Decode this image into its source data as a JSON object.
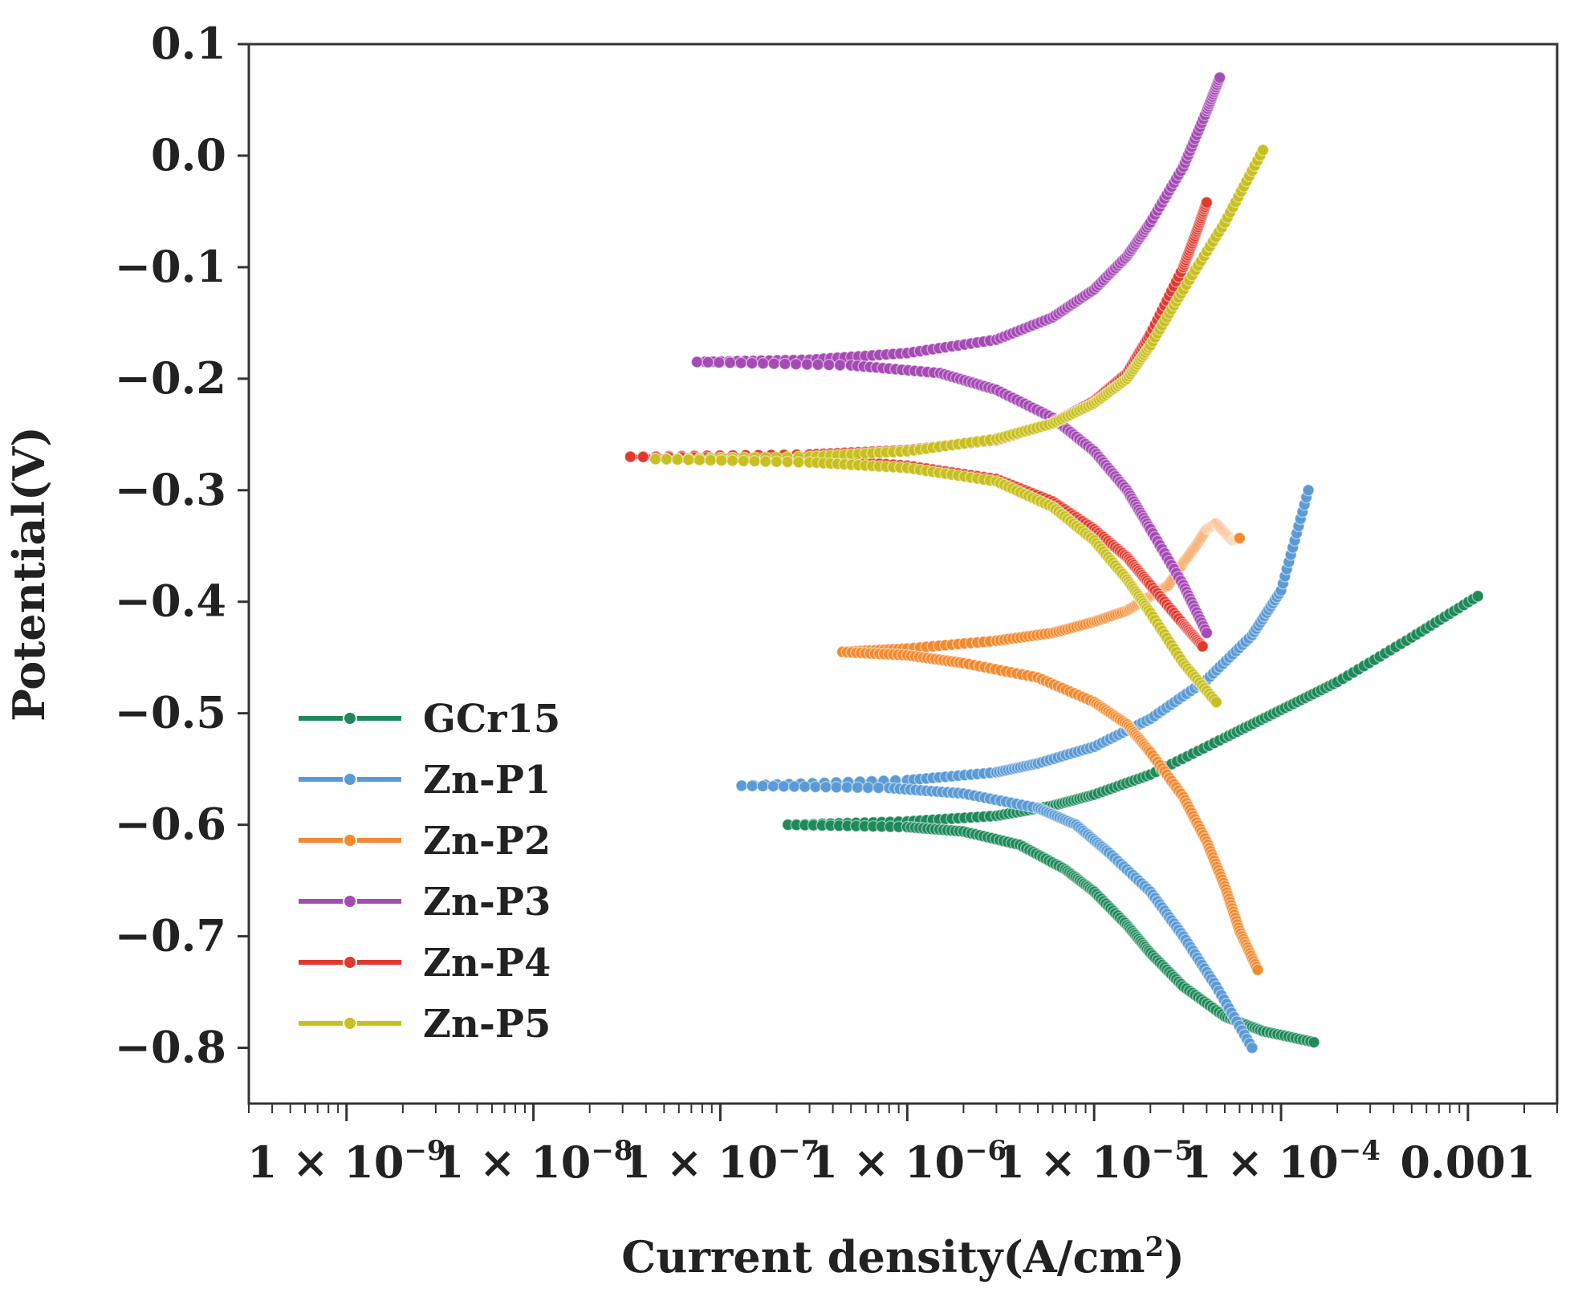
{
  "chart_data": {
    "type": "line",
    "title": "",
    "xlabel": "Current density(A/cm",
    "xlabel_sup": "2",
    "xlabel_close": ")",
    "ylabel": "Potential(V)",
    "xscale": "log",
    "xlim": [
      3e-10,
      0.003
    ],
    "ylim": [
      -0.85,
      0.1
    ],
    "yticks": [
      {
        "value": 0.1,
        "label": "0.1"
      },
      {
        "value": 0.0,
        "label": "0.0"
      },
      {
        "value": -0.1,
        "label": "−0.1"
      },
      {
        "value": -0.2,
        "label": "−0.2"
      },
      {
        "value": -0.3,
        "label": "−0.3"
      },
      {
        "value": -0.4,
        "label": "−0.4"
      },
      {
        "value": -0.5,
        "label": "−0.5"
      },
      {
        "value": -0.6,
        "label": "−0.6"
      },
      {
        "value": -0.7,
        "label": "−0.7"
      },
      {
        "value": -0.8,
        "label": "−0.8"
      }
    ],
    "xticks": [
      {
        "value": 1e-09,
        "base": "1 × 10",
        "exp": "−9"
      },
      {
        "value": 1e-08,
        "base": "1 × 10",
        "exp": "−8"
      },
      {
        "value": 1e-07,
        "base": "1 × 10",
        "exp": "−7"
      },
      {
        "value": 1e-06,
        "base": "1 × 10",
        "exp": "−6"
      },
      {
        "value": 1e-05,
        "base": "1 × 10",
        "exp": "−5"
      },
      {
        "value": 0.0001,
        "base": "1 × 10",
        "exp": "−4"
      },
      {
        "value": 0.001,
        "base": "0.001",
        "exp": ""
      }
    ],
    "legend_position": "bottom-left",
    "series": [
      {
        "name": "GCr15",
        "color": "#1e8a5a",
        "ecorr": -0.6,
        "icorr": 2.3e-07,
        "anodic": [
          [
            2.3e-07,
            -0.6
          ],
          [
            1e-06,
            -0.597
          ],
          [
            3e-06,
            -0.592
          ],
          [
            6e-06,
            -0.583
          ],
          [
            1e-05,
            -0.573
          ],
          [
            2e-05,
            -0.555
          ],
          [
            5e-05,
            -0.522
          ],
          [
            0.0001,
            -0.497
          ],
          [
            0.0002,
            -0.472
          ],
          [
            0.0005,
            -0.432
          ],
          [
            0.00113,
            -0.395
          ]
        ],
        "cathodic": [
          [
            2.3e-07,
            -0.6
          ],
          [
            1e-06,
            -0.602
          ],
          [
            2e-06,
            -0.606
          ],
          [
            4e-06,
            -0.618
          ],
          [
            7e-06,
            -0.64
          ],
          [
            1e-05,
            -0.66
          ],
          [
            1.5e-05,
            -0.69
          ],
          [
            2e-05,
            -0.715
          ],
          [
            3e-05,
            -0.745
          ],
          [
            5e-05,
            -0.772
          ],
          [
            8e-05,
            -0.785
          ],
          [
            0.00015,
            -0.795
          ]
        ]
      },
      {
        "name": "Zn-P1",
        "color": "#5b9bd5",
        "ecorr": -0.565,
        "icorr": 1.3e-07,
        "anodic": [
          [
            1.3e-07,
            -0.565
          ],
          [
            1e-06,
            -0.56
          ],
          [
            3e-06,
            -0.553
          ],
          [
            5e-06,
            -0.545
          ],
          [
            1e-05,
            -0.53
          ],
          [
            2e-05,
            -0.505
          ],
          [
            4e-05,
            -0.47
          ],
          [
            7e-05,
            -0.43
          ],
          [
            0.0001,
            -0.39
          ],
          [
            0.00014,
            -0.3
          ]
        ],
        "cathodic": [
          [
            1.3e-07,
            -0.565
          ],
          [
            8e-07,
            -0.567
          ],
          [
            2e-06,
            -0.572
          ],
          [
            5e-06,
            -0.585
          ],
          [
            8e-06,
            -0.6
          ],
          [
            1.2e-05,
            -0.625
          ],
          [
            2e-05,
            -0.66
          ],
          [
            3e-05,
            -0.7
          ],
          [
            4.5e-05,
            -0.745
          ],
          [
            7e-05,
            -0.8
          ]
        ]
      },
      {
        "name": "Zn-P2",
        "color": "#f28a30",
        "ecorr": -0.445,
        "icorr": 4.5e-07,
        "anodic": [
          [
            4.5e-07,
            -0.445
          ],
          [
            1e-06,
            -0.442
          ],
          [
            3e-06,
            -0.435
          ],
          [
            6e-06,
            -0.428
          ],
          [
            1e-05,
            -0.418
          ],
          [
            1.5e-05,
            -0.408
          ],
          [
            2e-05,
            -0.395
          ],
          [
            2.5e-05,
            -0.385
          ],
          [
            3e-05,
            -0.365
          ],
          [
            3.5e-05,
            -0.35
          ],
          [
            4e-05,
            -0.335
          ],
          [
            4.5e-05,
            -0.33
          ],
          [
            5e-05,
            -0.338
          ],
          [
            5.5e-05,
            -0.345
          ],
          [
            6e-05,
            -0.343
          ]
        ],
        "cathodic": [
          [
            4.5e-07,
            -0.445
          ],
          [
            1e-06,
            -0.448
          ],
          [
            2e-06,
            -0.455
          ],
          [
            5e-06,
            -0.468
          ],
          [
            1e-05,
            -0.49
          ],
          [
            1.5e-05,
            -0.51
          ],
          [
            2e-05,
            -0.535
          ],
          [
            3e-05,
            -0.575
          ],
          [
            4e-05,
            -0.615
          ],
          [
            5e-05,
            -0.655
          ],
          [
            6e-05,
            -0.695
          ],
          [
            7.5e-05,
            -0.73
          ]
        ]
      },
      {
        "name": "Zn-P3",
        "color": "#a64ab5",
        "ecorr": -0.185,
        "icorr": 7.5e-08,
        "anodic": [
          [
            7.5e-08,
            -0.185
          ],
          [
            3e-07,
            -0.183
          ],
          [
            1e-06,
            -0.177
          ],
          [
            3e-06,
            -0.165
          ],
          [
            6e-06,
            -0.145
          ],
          [
            1e-05,
            -0.12
          ],
          [
            1.5e-05,
            -0.09
          ],
          [
            2e-05,
            -0.06
          ],
          [
            3e-05,
            -0.01
          ],
          [
            4e-05,
            0.04
          ],
          [
            4.7e-05,
            0.07
          ]
        ],
        "cathodic": [
          [
            7.5e-08,
            -0.185
          ],
          [
            5e-07,
            -0.188
          ],
          [
            1.5e-06,
            -0.195
          ],
          [
            3e-06,
            -0.21
          ],
          [
            6e-06,
            -0.235
          ],
          [
            1e-05,
            -0.265
          ],
          [
            1.5e-05,
            -0.3
          ],
          [
            2e-05,
            -0.335
          ],
          [
            3e-05,
            -0.385
          ],
          [
            4e-05,
            -0.428
          ]
        ]
      },
      {
        "name": "Zn-P4",
        "color": "#e03a2e",
        "ecorr": -0.27,
        "icorr": 3.3e-08,
        "anodic": [
          [
            3.3e-08,
            -0.27
          ],
          [
            3e-07,
            -0.268
          ],
          [
            1e-06,
            -0.264
          ],
          [
            3e-06,
            -0.255
          ],
          [
            6e-06,
            -0.24
          ],
          [
            1e-05,
            -0.22
          ],
          [
            1.5e-05,
            -0.195
          ],
          [
            2e-05,
            -0.16
          ],
          [
            3e-05,
            -0.1
          ],
          [
            3.5e-05,
            -0.07
          ],
          [
            4e-05,
            -0.042
          ]
        ],
        "cathodic": [
          [
            3.3e-08,
            -0.27
          ],
          [
            3e-07,
            -0.272
          ],
          [
            1e-06,
            -0.278
          ],
          [
            3e-06,
            -0.29
          ],
          [
            6e-06,
            -0.31
          ],
          [
            1e-05,
            -0.335
          ],
          [
            1.5e-05,
            -0.36
          ],
          [
            2e-05,
            -0.385
          ],
          [
            3e-05,
            -0.42
          ],
          [
            3.8e-05,
            -0.44
          ]
        ]
      },
      {
        "name": "Zn-P5",
        "color": "#c8c01e",
        "ecorr": -0.272,
        "icorr": 4.5e-08,
        "anodic": [
          [
            4.5e-08,
            -0.272
          ],
          [
            3e-07,
            -0.27
          ],
          [
            1e-06,
            -0.265
          ],
          [
            3e-06,
            -0.254
          ],
          [
            6e-06,
            -0.24
          ],
          [
            1e-05,
            -0.222
          ],
          [
            1.5e-05,
            -0.2
          ],
          [
            2e-05,
            -0.17
          ],
          [
            3e-05,
            -0.12
          ],
          [
            5e-05,
            -0.06
          ],
          [
            8e-05,
            0.005
          ]
        ],
        "cathodic": [
          [
            4.5e-08,
            -0.272
          ],
          [
            3e-07,
            -0.275
          ],
          [
            1e-06,
            -0.28
          ],
          [
            3e-06,
            -0.292
          ],
          [
            6e-06,
            -0.315
          ],
          [
            1e-05,
            -0.345
          ],
          [
            1.5e-05,
            -0.38
          ],
          [
            2e-05,
            -0.41
          ],
          [
            3e-05,
            -0.455
          ],
          [
            4.5e-05,
            -0.49
          ]
        ]
      }
    ]
  }
}
